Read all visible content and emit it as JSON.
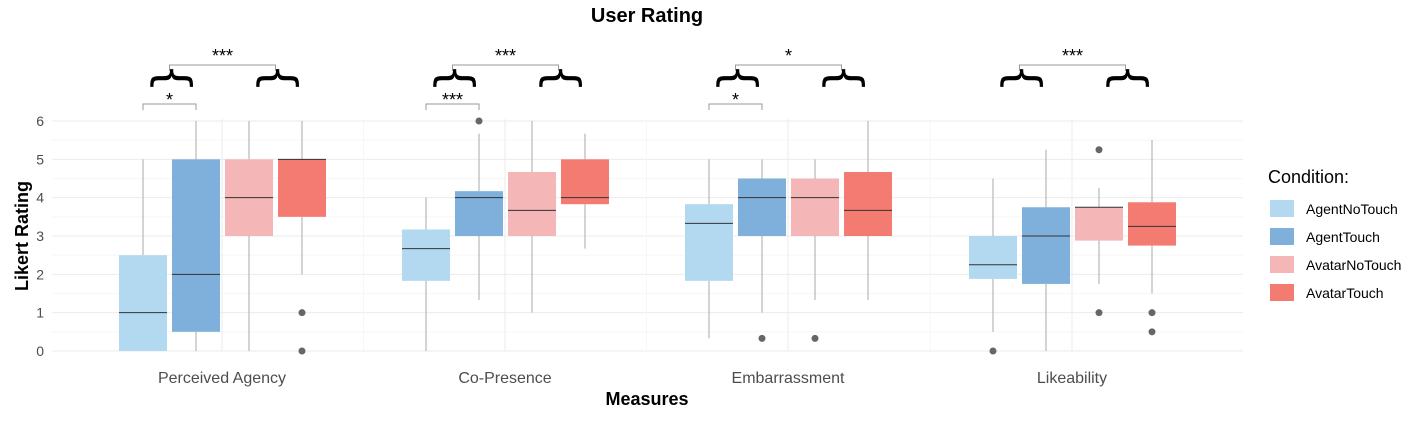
{
  "chart_data": {
    "type": "boxplot",
    "title": "User Rating",
    "xlabel": "Measures",
    "ylabel": "Likert Rating",
    "ylim": [
      0,
      6
    ],
    "yticks": [
      "0",
      "1",
      "2",
      "3",
      "4",
      "5",
      "6"
    ],
    "grid": true,
    "legend": {
      "title": "Condition:",
      "placement": "right"
    },
    "categories": [
      "Perceived Agency",
      "Co-Presence",
      "Embarrassment",
      "Likeability"
    ],
    "series": [
      {
        "name": "AgentNoTouch",
        "color": "#b3d9f0",
        "boxes": [
          {
            "lower_whisker": 0,
            "q1": 0,
            "median": 1,
            "q3": 2.5,
            "upper_whisker": 5,
            "outliers": []
          },
          {
            "lower_whisker": 0,
            "q1": 1.83,
            "median": 2.67,
            "q3": 3.17,
            "upper_whisker": 4,
            "outliers": []
          },
          {
            "lower_whisker": 0.33,
            "q1": 1.83,
            "median": 3.33,
            "q3": 3.83,
            "upper_whisker": 5,
            "outliers": []
          },
          {
            "lower_whisker": 0.5,
            "q1": 1.88,
            "median": 2.25,
            "q3": 3,
            "upper_whisker": 4.5,
            "outliers": [
              0
            ]
          }
        ]
      },
      {
        "name": "AgentTouch",
        "color": "#7fb0dc",
        "boxes": [
          {
            "lower_whisker": 0,
            "q1": 0.5,
            "median": 2,
            "q3": 5,
            "upper_whisker": 6,
            "outliers": []
          },
          {
            "lower_whisker": 1.33,
            "q1": 3,
            "median": 4,
            "q3": 4.17,
            "upper_whisker": 5.67,
            "outliers": [
              6
            ]
          },
          {
            "lower_whisker": 1,
            "q1": 3,
            "median": 4,
            "q3": 4.5,
            "upper_whisker": 5,
            "outliers": [
              0.33
            ]
          },
          {
            "lower_whisker": 0,
            "q1": 1.75,
            "median": 3,
            "q3": 3.75,
            "upper_whisker": 5.25,
            "outliers": []
          }
        ]
      },
      {
        "name": "AvatarNoTouch",
        "color": "#f4b6b6",
        "boxes": [
          {
            "lower_whisker": 0,
            "q1": 3,
            "median": 4,
            "q3": 5,
            "upper_whisker": 6,
            "outliers": []
          },
          {
            "lower_whisker": 1,
            "q1": 3,
            "median": 3.67,
            "q3": 4.67,
            "upper_whisker": 6,
            "outliers": []
          },
          {
            "lower_whisker": 1.33,
            "q1": 3,
            "median": 4,
            "q3": 4.5,
            "upper_whisker": 5,
            "outliers": [
              0.33
            ]
          },
          {
            "lower_whisker": 1.75,
            "q1": 2.88,
            "median": 3.75,
            "q3": 3.75,
            "upper_whisker": 4.25,
            "outliers": [
              1,
              5.25
            ]
          }
        ]
      },
      {
        "name": "AvatarTouch",
        "color": "#f47b72",
        "boxes": [
          {
            "lower_whisker": 2,
            "q1": 3.5,
            "median": 5,
            "q3": 5,
            "upper_whisker": 6,
            "outliers": [
              1,
              0
            ]
          },
          {
            "lower_whisker": 2.67,
            "q1": 3.83,
            "median": 4,
            "q3": 5,
            "upper_whisker": 5.67,
            "outliers": []
          },
          {
            "lower_whisker": 1.33,
            "q1": 3,
            "median": 3.67,
            "q3": 4.67,
            "upper_whisker": 6,
            "outliers": []
          },
          {
            "lower_whisker": 1.5,
            "q1": 2.75,
            "median": 3.25,
            "q3": 3.88,
            "upper_whisker": 5.5,
            "outliers": [
              1,
              0.5
            ]
          }
        ]
      }
    ],
    "annotations": [
      {
        "category": "Perceived Agency",
        "comparison": "AgentNoTouch vs AgentTouch",
        "label": "*"
      },
      {
        "category": "Perceived Agency",
        "comparison": "Agent vs Avatar",
        "label": "***"
      },
      {
        "category": "Co-Presence",
        "comparison": "AgentNoTouch vs AgentTouch",
        "label": "***"
      },
      {
        "category": "Co-Presence",
        "comparison": "Agent vs Avatar",
        "label": "***"
      },
      {
        "category": "Embarrassment",
        "comparison": "AgentNoTouch vs AgentTouch",
        "label": "*"
      },
      {
        "category": "Embarrassment",
        "comparison": "Agent vs Avatar",
        "label": "*"
      },
      {
        "category": "Likeability",
        "comparison": "Agent vs Avatar",
        "label": "***"
      }
    ]
  }
}
